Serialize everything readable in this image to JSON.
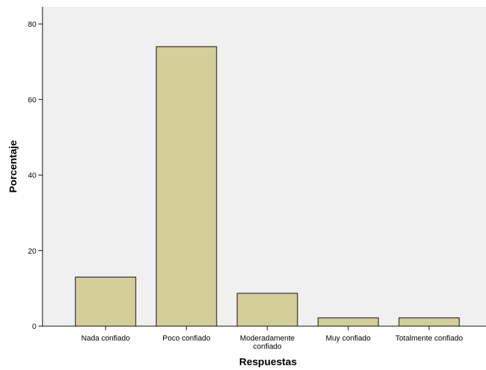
{
  "chart_data": {
    "type": "bar",
    "title": "",
    "xlabel": "Respuestas",
    "ylabel": "Porcentaje",
    "categories": [
      "Nada confiado",
      "Poco confiado",
      "Moderadamente confiado",
      "Muy confiado",
      "Totalmente confiado"
    ],
    "category_label_lines": [
      [
        "Nada confiado"
      ],
      [
        "Poco confiado"
      ],
      [
        "Moderadamente",
        "confiado"
      ],
      [
        "Muy confiado"
      ],
      [
        "Totalmente confiado"
      ]
    ],
    "values": [
      13.0,
      74.0,
      8.7,
      2.2,
      2.2
    ],
    "ylim": [
      0,
      80
    ],
    "yticks": [
      "0",
      "20",
      "40",
      "60",
      "80"
    ],
    "grid": false,
    "colors": {
      "bar_fill": "#d3ce9a",
      "bar_stroke": "#000000",
      "plot_background": "#f0f0f0"
    }
  }
}
